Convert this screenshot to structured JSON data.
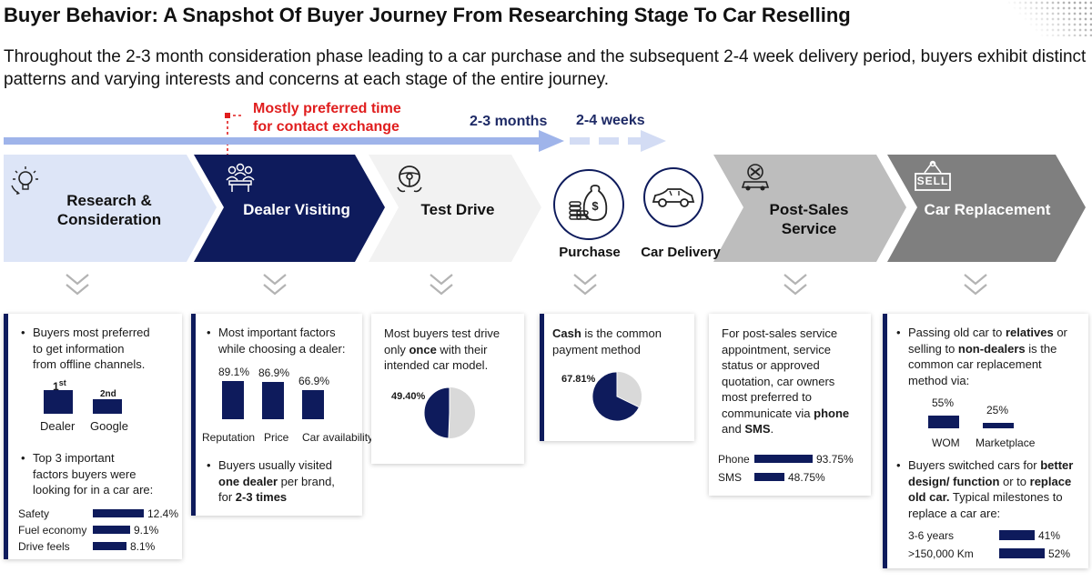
{
  "title": "Buyer Behavior: A Snapshot Of Buyer Journey From Researching Stage To Car Reselling",
  "subtitle": "Throughout the 2-3 month consideration phase leading to a car purchase and the subsequent 2-4 week delivery period, buyers exhibit distinct patterns and varying interests and concerns at each stage of the entire journey.",
  "timeline": {
    "note_line1": "Mostly preferred time",
    "note_line2": "for contact exchange",
    "phase1": "2-3 months",
    "phase2": "2-4 weeks"
  },
  "colors": {
    "navy": "#0e1b5c",
    "light_blue": "#dde5f7",
    "gray": "#bdbdbd",
    "dark_gray": "#7f7f7f",
    "red": "#e01e1e"
  },
  "stages": {
    "research_l1": "Research &",
    "research_l2": "Consideration",
    "dealer": "Dealer Visiting",
    "test_drive": "Test Drive",
    "purchase": "Purchase",
    "delivery": "Car Delivery",
    "post_sales": "Post-Sales Service",
    "replacement": "Car Replacement",
    "sell_sign": "SELL"
  },
  "research": {
    "text_l1": "Buyers most preferred",
    "text_l2": "to get information",
    "text_l3": "from offline channels.",
    "rank1": "1",
    "rank1_sup": "st",
    "rank2": "2nd",
    "cat1": "Dealer",
    "cat2": "Google",
    "factors_l1": "Top 3 important",
    "factors_l2": "factors buyers were",
    "factors_l3": "looking for in a car are:",
    "bars": [
      {
        "label": "Safety",
        "value": 12.4,
        "display": "12.4%"
      },
      {
        "label": "Fuel economy",
        "value": 9.1,
        "display": "9.1%"
      },
      {
        "label": "Drive feels",
        "value": 8.1,
        "display": "8.1%"
      }
    ]
  },
  "dealer": {
    "text_l1": "Most important factors",
    "text_l2": "while choosing a dealer:",
    "bars": [
      {
        "label": "Reputation",
        "value": 89.1,
        "display": "89.1%"
      },
      {
        "label": "Price",
        "value": 86.9,
        "display": "86.9%"
      },
      {
        "label": "Car availability",
        "value": 66.9,
        "display": "66.9%"
      }
    ],
    "visit_l1": "Buyers usually visited",
    "visit_bold1": "one dealer",
    "visit_l2_rest": " per brand,",
    "visit_l3_pre": "for ",
    "visit_bold2": "2-3 times"
  },
  "test_drive": {
    "text_l1": "Most buyers test drive",
    "text_l2_pre": "only ",
    "text_bold": "once",
    "text_l2_post": " with their",
    "text_l3": "intended car model.",
    "pie_value": 49.4,
    "pie_label": "49.40%"
  },
  "purchase": {
    "bold": "Cash",
    "text_l1_post": " is the common",
    "text_l2": "payment method",
    "pie_value": 67.81,
    "pie_label": "67.81%"
  },
  "post_sales": {
    "text_l1": "For post-sales service",
    "text_l2": "appointment, service",
    "text_l3": "status or approved",
    "text_l4": "quotation, car owners",
    "text_l5": "most preferred to",
    "text_l6_pre": "communicate via ",
    "bold1": "phone",
    "text_l7_pre": "and ",
    "bold2": "SMS",
    "text_l7_post": ".",
    "bars": [
      {
        "label": "Phone",
        "value": 93.75,
        "display": "93.75%"
      },
      {
        "label": "SMS",
        "value": 48.75,
        "display": "48.75%"
      }
    ]
  },
  "replacement": {
    "l1_pre": "Passing old car to ",
    "bold1": "relatives",
    "l1_post": " or",
    "l2_pre": "selling to ",
    "bold2": "non-dealers",
    "l2_post": " is the",
    "l3": "common car replacement",
    "l4": "method via:",
    "bars": [
      {
        "label": "WOM",
        "value": 55,
        "display": "55%"
      },
      {
        "label": "Marketplace",
        "value": 25,
        "display": "25%"
      }
    ],
    "s1_pre": "Buyers switched cars for ",
    "s1_bold": "better",
    "s2_bold": "design/ function",
    "s2_mid": " or to ",
    "s2_bold2": "replace",
    "s3_bold": "old car.",
    "s3_post": " Typical milestones to",
    "s4": "replace a car are:",
    "milestones": [
      {
        "label": "3-6 years",
        "value": 41,
        "display": "41%"
      },
      {
        "label": ">150,000 Km",
        "value": 52,
        "display": "52%"
      }
    ]
  }
}
